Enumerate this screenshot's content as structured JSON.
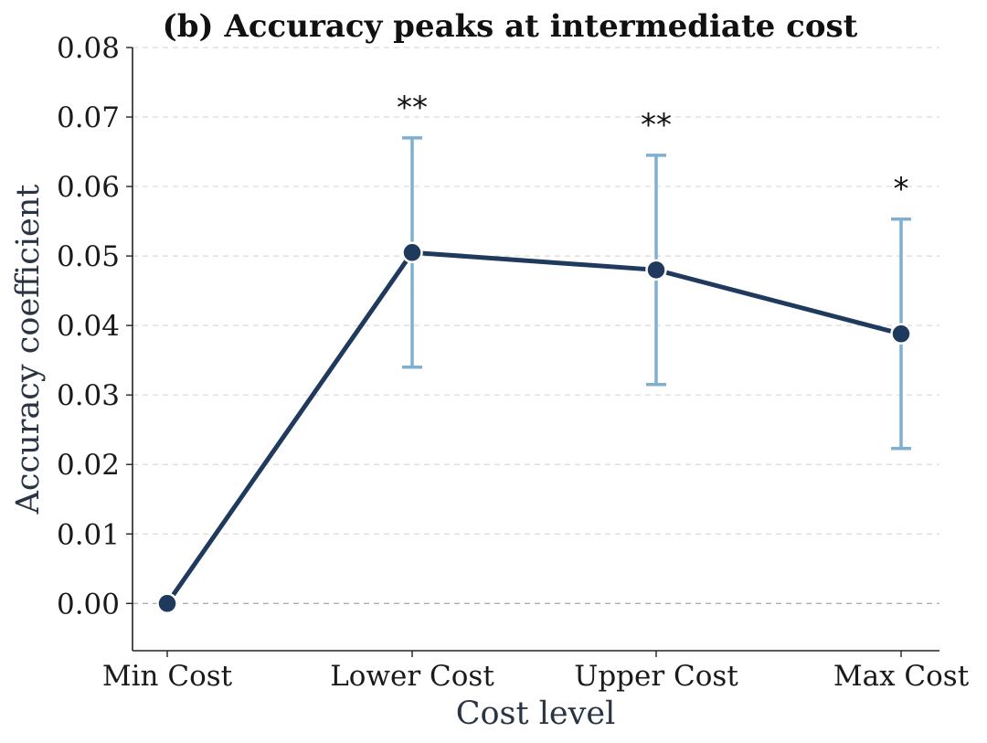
{
  "chart_data": {
    "type": "line",
    "title": "(b) Accuracy peaks at intermediate cost",
    "xlabel": "Cost level",
    "ylabel": "Accuracy coefficient",
    "categories": [
      "Min Cost",
      "Lower Cost",
      "Upper Cost",
      "Max Cost"
    ],
    "series": [
      {
        "values": [
          0.0,
          0.0505,
          0.048,
          0.0388
        ],
        "error_low": [
          null,
          0.034,
          0.0315,
          0.0223
        ],
        "error_high": [
          null,
          0.067,
          0.0645,
          0.0553
        ],
        "significance": [
          "",
          "**",
          "**",
          "*"
        ]
      }
    ],
    "ylim": [
      -0.0068,
      0.08
    ],
    "yticks": [
      "0.00",
      "0.01",
      "0.02",
      "0.03",
      "0.04",
      "0.05",
      "0.06",
      "0.07",
      "0.08"
    ],
    "grid": "horizontal dashed",
    "reference_line": 0.0,
    "colors": {
      "line": "#1f3a5c",
      "marker": "#1f3a5c",
      "marker_edge": "#ffffff",
      "error_bar": "#7fb0d0",
      "grid": "#d9d9d9",
      "reference_line": "#b0b0b0",
      "axis": "#222222"
    }
  }
}
